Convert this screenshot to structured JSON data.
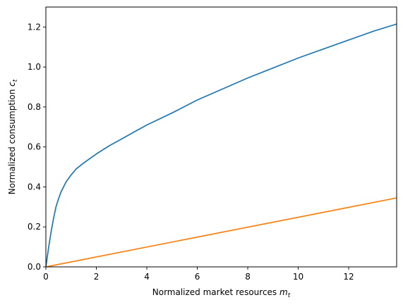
{
  "chart_data": {
    "type": "line",
    "xlabel": "Normalized market resources",
    "xlabel_symbol": "m",
    "xlabel_sub": "t",
    "ylabel": "Normalized consumption",
    "ylabel_symbol": "c",
    "ylabel_sub": "t",
    "xlim": [
      0,
      13.9
    ],
    "ylim": [
      0,
      1.3
    ],
    "x_ticks": [
      0,
      2,
      4,
      6,
      8,
      10,
      12
    ],
    "x_tick_labels": [
      "0",
      "2",
      "4",
      "6",
      "8",
      "10",
      "12"
    ],
    "y_ticks": [
      0.0,
      0.2,
      0.4,
      0.6,
      0.8,
      1.0,
      1.2
    ],
    "y_tick_labels": [
      "0.0",
      "0.2",
      "0.4",
      "0.6",
      "0.8",
      "1.0",
      "1.2"
    ],
    "grid": false,
    "legend": "none",
    "series": [
      {
        "color": "#1f77b4",
        "x": [
          0,
          0.1,
          0.2,
          0.3,
          0.4,
          0.5,
          0.6,
          0.8,
          1.0,
          1.2,
          1.5,
          2.0,
          2.5,
          3.0,
          3.5,
          4.0,
          5.0,
          6.0,
          7.0,
          8.0,
          9.0,
          10.0,
          11.0,
          12.0,
          13.0,
          13.9
        ],
        "y": [
          0.0,
          0.09,
          0.17,
          0.24,
          0.3,
          0.34,
          0.375,
          0.425,
          0.46,
          0.49,
          0.52,
          0.565,
          0.605,
          0.64,
          0.675,
          0.71,
          0.77,
          0.835,
          0.89,
          0.945,
          0.995,
          1.045,
          1.09,
          1.135,
          1.18,
          1.215
        ]
      },
      {
        "color": "#ff7f0e",
        "x": [
          0,
          13.9
        ],
        "y": [
          0.0,
          0.345
        ]
      }
    ]
  }
}
